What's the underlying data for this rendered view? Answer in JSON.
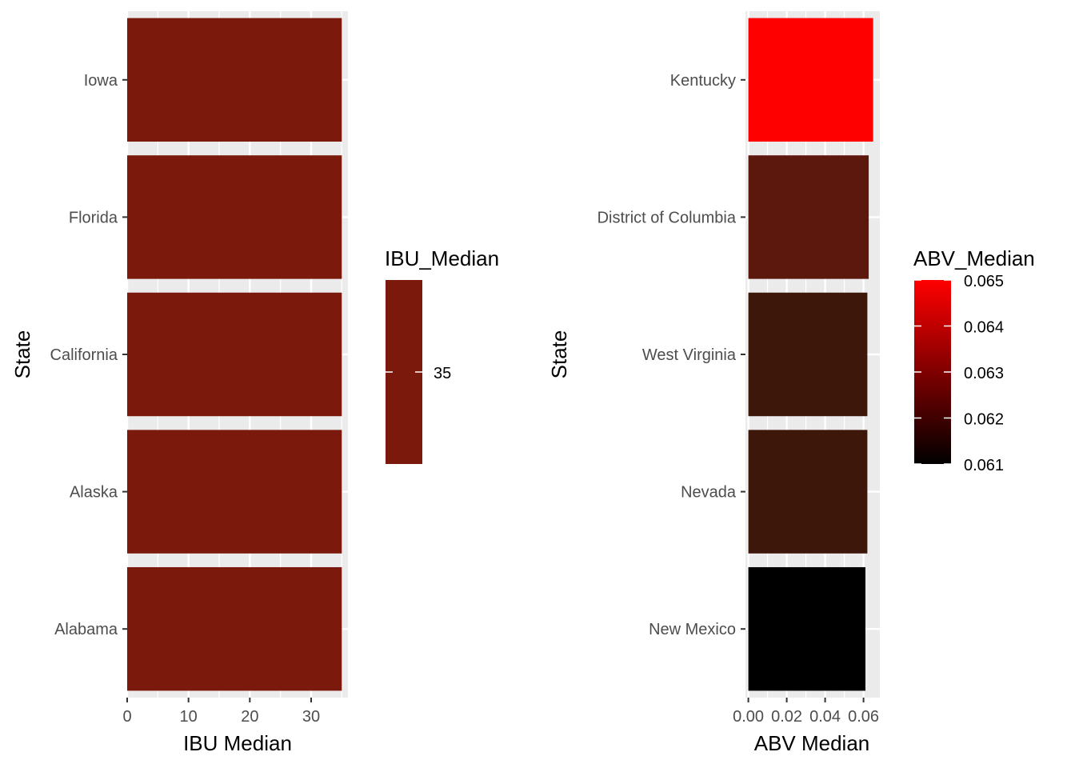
{
  "chart_data": [
    {
      "type": "bar",
      "orientation": "horizontal",
      "categories": [
        "Iowa",
        "Florida",
        "California",
        "Alaska",
        "Alabama"
      ],
      "values": [
        35,
        35,
        35,
        35,
        35
      ],
      "colors": [
        "#7B1A0C",
        "#7B1A0C",
        "#7B1A0C",
        "#7B1A0C",
        "#7B1A0C"
      ],
      "xlabel": "IBU Median",
      "ylabel": "State",
      "xlim": [
        0,
        36
      ],
      "xticks": [
        "0",
        "10",
        "20",
        "30"
      ],
      "grid": true,
      "legend": {
        "title": "IBU_Median",
        "placement": "right",
        "labels": [
          "35"
        ],
        "color": "#7B1A0C"
      }
    },
    {
      "type": "bar",
      "orientation": "horizontal",
      "categories": [
        "Kentucky",
        "District of Columbia",
        "West Virginia",
        "Nevada",
        "New Mexico"
      ],
      "values": [
        0.065,
        0.0627,
        0.062,
        0.062,
        0.061
      ],
      "colors": [
        "#FF0000",
        "#5C180D",
        "#3E170B",
        "#3E170B",
        "#000000"
      ],
      "xlabel": "ABV Median",
      "ylabel": "State",
      "xlim": [
        -0.0015,
        0.0685
      ],
      "xticks": [
        "0.00",
        "0.02",
        "0.04",
        "0.06"
      ],
      "grid": true,
      "legend": {
        "title": "ABV_Median",
        "placement": "right",
        "labels": [
          "0.065",
          "0.064",
          "0.063",
          "0.062",
          "0.061"
        ],
        "colorscale": [
          "#000000",
          "#FF0000"
        ],
        "range": [
          0.061,
          0.065
        ]
      }
    }
  ]
}
